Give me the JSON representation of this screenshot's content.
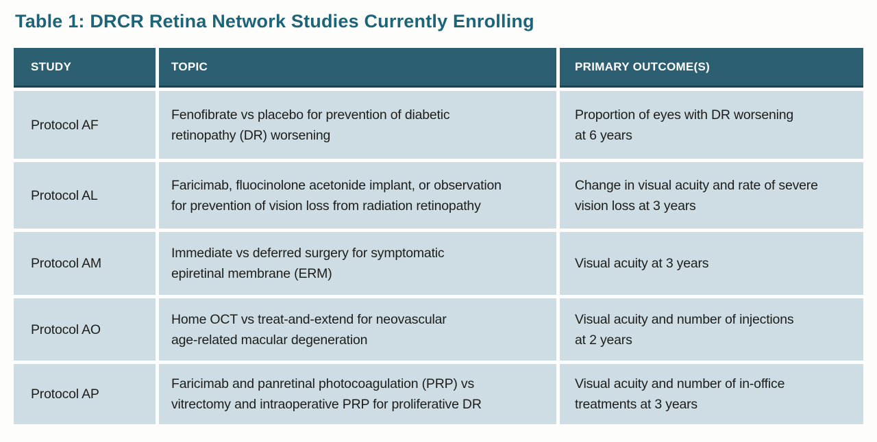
{
  "title": "Table 1: DRCR Retina Network Studies Currently Enrolling",
  "colors": {
    "title_text": "#1e6478",
    "header_background": "#2d5f73",
    "header_text": "#ffffff",
    "row_background": "#cddde3",
    "body_text": "#1d1d1b",
    "page_background": "#fdfdfb"
  },
  "table": {
    "columns": [
      "STUDY",
      "TOPIC",
      "PRIMARY OUTCOME(S)"
    ],
    "rows": [
      {
        "study": "Protocol AF",
        "topic": "Fenofibrate vs placebo for prevention of diabetic\nretinopathy (DR) worsening",
        "outcome": "Proportion of eyes with DR worsening\nat 6 years"
      },
      {
        "study": "Protocol AL",
        "topic": "Faricimab, fluocinolone acetonide implant, or observation\nfor prevention of vision loss from radiation retinopathy",
        "outcome": "Change in visual acuity and rate of severe\nvision loss at 3 years"
      },
      {
        "study": "Protocol AM",
        "topic": "Immediate vs deferred surgery for symptomatic\nepiretinal membrane (ERM)",
        "outcome": "Visual acuity at 3 years"
      },
      {
        "study": "Protocol AO",
        "topic": "Home OCT vs treat-and-extend for neovascular\nage-related macular degeneration",
        "outcome": "Visual acuity and number of injections\nat 2 years"
      },
      {
        "study": "Protocol AP",
        "topic": "Faricimab and panretinal photocoagulation (PRP) vs\nvitrectomy and intraoperative PRP for proliferative DR",
        "outcome": "Visual acuity and number of in-office\ntreatments at 3 years"
      }
    ]
  }
}
